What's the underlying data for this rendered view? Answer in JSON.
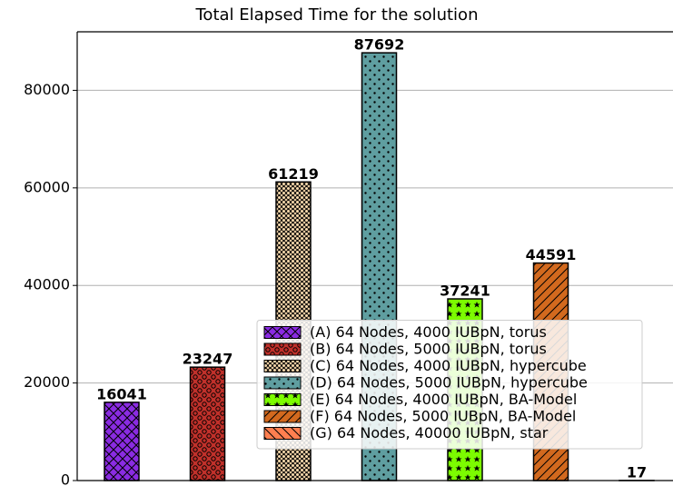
{
  "chart_data": {
    "type": "bar",
    "title": "Total Elapsed Time for the solution",
    "series": [
      {
        "name": "(A) 64 Nodes, 4000 IUBpN, torus",
        "color": "#8a2be2",
        "hatch": "x",
        "values": [
          16041
        ]
      },
      {
        "name": "(B) 64 Nodes, 5000 IUBpN, torus",
        "color": "#c0302a",
        "hatch": "o",
        "values": [
          23247
        ]
      },
      {
        "name": "(C) 64 Nodes, 4000 IUBpN, hypercube",
        "color": "#ffdeb0",
        "hatch": "O",
        "values": [
          61219
        ]
      },
      {
        "name": "(D) 64 Nodes, 5000 IUBpN, hypercube",
        "color": "#5f9ea0",
        "hatch": ".",
        "values": [
          87692
        ]
      },
      {
        "name": "(E) 64 Nodes, 4000 IUBpN, BA-Model",
        "color": "#7cfc00",
        "hatch": "*",
        "values": [
          37241
        ]
      },
      {
        "name": "(F) 64 Nodes, 5000 IUBpN, BA-Model",
        "color": "#d2691e",
        "hatch": "/",
        "values": [
          44591
        ]
      },
      {
        "name": "(G) 64 Nodes, 40000 IUBpN, star",
        "color": "#ff7f50",
        "hatch": "\\",
        "values": [
          17
        ]
      }
    ],
    "ylim": [
      0,
      92000
    ],
    "yticks": [
      0,
      20000,
      40000,
      60000,
      80000
    ],
    "grid": true,
    "legend": "lower right"
  }
}
